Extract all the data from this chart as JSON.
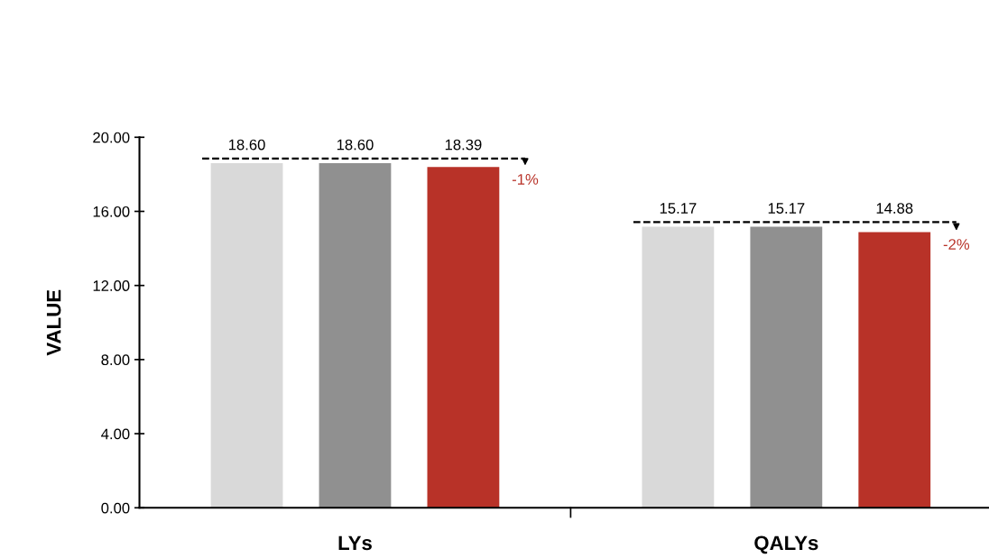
{
  "chart_data": {
    "type": "bar",
    "ylabel": "VALUE",
    "categories": [
      "LYs",
      "QALYs"
    ],
    "series": [
      {
        "color": "#d9d9d9",
        "values": [
          18.6,
          15.17
        ],
        "value_labels": [
          "18.60",
          "15.17"
        ]
      },
      {
        "color": "#909090",
        "values": [
          18.6,
          15.17
        ],
        "value_labels": [
          "18.60",
          "15.17"
        ]
      },
      {
        "color": "#b83228",
        "values": [
          18.39,
          14.88
        ],
        "value_labels": [
          "18.39",
          "14.88"
        ]
      }
    ],
    "ylim": [
      0,
      20
    ],
    "yticks": [
      {
        "value": 0,
        "label": "0.00"
      },
      {
        "value": 4,
        "label": "4.00"
      },
      {
        "value": 8,
        "label": "8.00"
      },
      {
        "value": 12,
        "label": "12.00"
      },
      {
        "value": 16,
        "label": "16.00"
      },
      {
        "value": 20,
        "label": "20.00"
      }
    ],
    "annotations": [
      "-1%",
      "-2%"
    ],
    "grid": false
  }
}
